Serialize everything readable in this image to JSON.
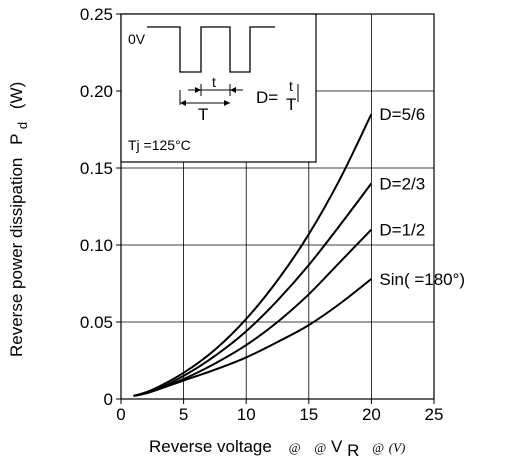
{
  "chart_data": {
    "type": "line",
    "title": "",
    "xlabel": {
      "main": "Reverse voltage",
      "sym1": "@",
      "sym2": "@",
      "v": "V",
      "r": "R",
      "sym3": "@",
      "unit": "(V)"
    },
    "ylabel": {
      "main": "Reverse power dissipation",
      "p": "P",
      "d": "d",
      "unit": "(W)"
    },
    "xlim": [
      0,
      25
    ],
    "ylim": [
      0,
      0.25
    ],
    "x_ticks": [
      "0",
      "5",
      "10",
      "15",
      "20",
      "25"
    ],
    "y_ticks": [
      "0",
      "0.05",
      "0.10",
      "0.15",
      "0.20",
      "0.25"
    ],
    "grid": true,
    "series": [
      {
        "name": "D=5/6",
        "x": [
          1,
          2.5,
          5,
          7.5,
          10,
          12.5,
          15,
          17.5,
          20
        ],
        "y": [
          0.002,
          0.006,
          0.017,
          0.032,
          0.052,
          0.077,
          0.107,
          0.143,
          0.185
        ]
      },
      {
        "name": "D=2/3",
        "x": [
          1,
          2.5,
          5,
          7.5,
          10,
          12.5,
          15,
          17.5,
          20
        ],
        "y": [
          0.002,
          0.005,
          0.015,
          0.028,
          0.044,
          0.064,
          0.087,
          0.113,
          0.14
        ]
      },
      {
        "name": "D=1/2",
        "x": [
          1,
          2.5,
          5,
          7.5,
          10,
          12.5,
          15,
          17.5,
          20
        ],
        "y": [
          0.002,
          0.005,
          0.013,
          0.023,
          0.035,
          0.05,
          0.068,
          0.089,
          0.11
        ]
      },
      {
        "name": "Sin(  =180°)",
        "x": [
          1,
          2.5,
          5,
          7.5,
          10,
          12.5,
          15,
          17.5,
          20
        ],
        "y": [
          0.002,
          0.005,
          0.012,
          0.019,
          0.027,
          0.037,
          0.048,
          0.062,
          0.078
        ]
      }
    ],
    "inset": {
      "zero_label": "0V",
      "t_label": "t",
      "T_label": "T",
      "duty_label": "D=",
      "frac_num": "t",
      "frac_den": "T",
      "tj_label": "Tj =125°C"
    }
  }
}
